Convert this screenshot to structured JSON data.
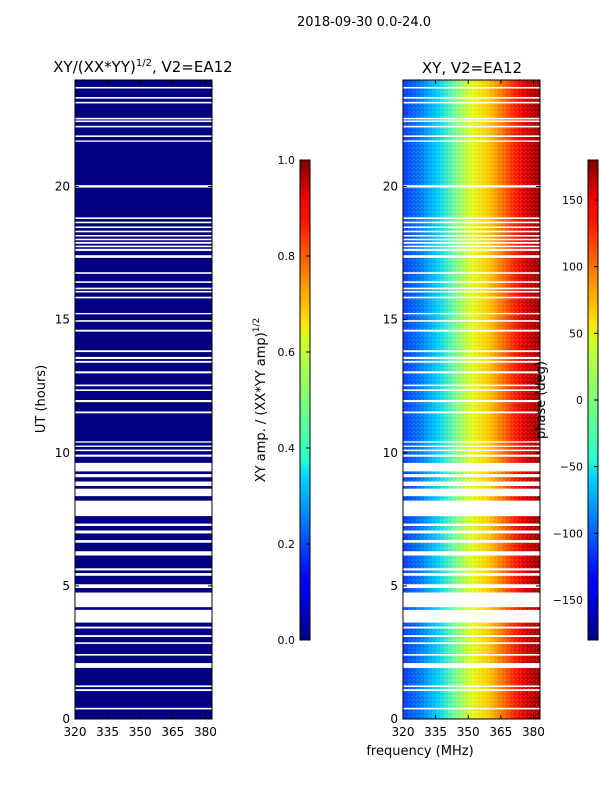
{
  "figure": {
    "suptitle": "2018-09-30 0.0-24.0",
    "shared_xlabel": "frequency (MHz)"
  },
  "chart_data": [
    {
      "type": "heatmap",
      "title": "XY/(XX*YY)",
      "title_exponent": "1/2",
      "title_suffix": ", V2=EA12",
      "xlabel": "",
      "ylabel": "UT (hours)",
      "x_ticks": [
        320,
        335,
        350,
        365,
        380
      ],
      "y_ticks": [
        0,
        5,
        10,
        15,
        20
      ],
      "xlim": [
        320,
        383
      ],
      "ylim": [
        0,
        24
      ],
      "colormap": "jet",
      "fill_value": 0.0,
      "flagged_color": "#ffffff",
      "colorbar": {
        "label": "XY amp. / (XX*YY amp)",
        "label_exponent": "1/2",
        "range": [
          0.0,
          1.0
        ],
        "ticks": [
          "0.0",
          "0.2",
          "0.4",
          "0.6",
          "0.8",
          "1.0"
        ]
      }
    },
    {
      "type": "heatmap",
      "title": "XY, V2=EA12",
      "xlabel": "frequency (MHz)",
      "ylabel": "",
      "x_ticks": [
        320,
        335,
        350,
        365,
        380
      ],
      "y_ticks": [
        0,
        5,
        10,
        15,
        20
      ],
      "xlim": [
        320,
        383
      ],
      "ylim": [
        0,
        24
      ],
      "colormap": "jet",
      "phase_vs_frequency": {
        "x": [
          320,
          330,
          340,
          350,
          360,
          370,
          380,
          383
        ],
        "phase_deg": [
          -120,
          -85,
          -40,
          10,
          60,
          110,
          160,
          175
        ]
      },
      "flagged_color": "#ffffff",
      "colorbar": {
        "label": "phase (deg)",
        "range": [
          -180,
          180
        ],
        "ticks": [
          "-150",
          "-100",
          "-50",
          "0",
          "50",
          "100",
          "150"
        ]
      }
    }
  ],
  "flagged_ut_ranges": [
    [
      0.36,
      0.42
    ],
    [
      1.05,
      1.12
    ],
    [
      1.2,
      1.26
    ],
    [
      1.92,
      2.1
    ],
    [
      2.38,
      2.44
    ],
    [
      2.82,
      2.88
    ],
    [
      3.08,
      3.15
    ],
    [
      3.4,
      3.47
    ],
    [
      3.62,
      4.1
    ],
    [
      4.2,
      4.75
    ],
    [
      4.92,
      5.06
    ],
    [
      5.38,
      5.48
    ],
    [
      5.58,
      5.66
    ],
    [
      6.14,
      6.3
    ],
    [
      6.62,
      6.72
    ],
    [
      6.97,
      7.08
    ],
    [
      7.25,
      7.34
    ],
    [
      7.62,
      8.2
    ],
    [
      8.37,
      8.65
    ],
    [
      8.75,
      8.92
    ],
    [
      9.08,
      9.2
    ],
    [
      9.3,
      9.62
    ],
    [
      9.85,
      9.93
    ],
    [
      10.06,
      10.12
    ],
    [
      10.22,
      10.27
    ],
    [
      10.38,
      10.43
    ],
    [
      11.48,
      11.55
    ],
    [
      11.9,
      11.98
    ],
    [
      12.32,
      12.38
    ],
    [
      12.5,
      12.56
    ],
    [
      12.98,
      13.06
    ],
    [
      13.38,
      13.45
    ],
    [
      13.52,
      13.6
    ],
    [
      13.78,
      13.85
    ],
    [
      14.55,
      14.62
    ],
    [
      14.92,
      14.98
    ],
    [
      15.2,
      15.25
    ],
    [
      15.8,
      15.86
    ],
    [
      16.02,
      16.08
    ],
    [
      16.14,
      16.2
    ],
    [
      16.38,
      16.44
    ],
    [
      16.72,
      16.78
    ],
    [
      17.32,
      17.42
    ],
    [
      17.58,
      17.66
    ],
    [
      17.72,
      17.78
    ],
    [
      17.85,
      17.92
    ],
    [
      17.98,
      18.04
    ],
    [
      18.12,
      18.18
    ],
    [
      18.28,
      18.34
    ],
    [
      18.44,
      18.5
    ],
    [
      18.62,
      18.68
    ],
    [
      18.78,
      18.84
    ],
    [
      19.96,
      20.05
    ],
    [
      21.68,
      21.73
    ],
    [
      21.86,
      21.92
    ],
    [
      22.22,
      22.28
    ],
    [
      22.42,
      22.48
    ],
    [
      22.52,
      22.58
    ],
    [
      23.12,
      23.18
    ],
    [
      23.3,
      23.36
    ],
    [
      23.68,
      23.74
    ]
  ]
}
